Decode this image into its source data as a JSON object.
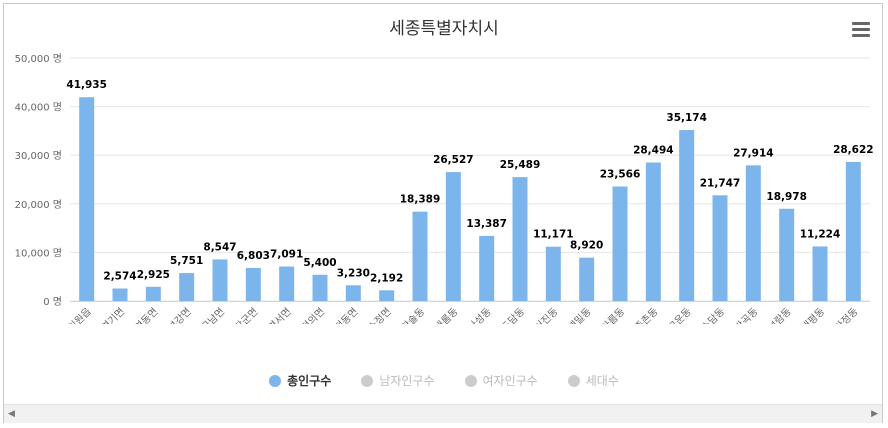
{
  "chart_data": {
    "type": "bar",
    "title": "세종특별자치시",
    "unit": "명",
    "ylim": [
      0,
      50000
    ],
    "yticks": [
      0,
      10000,
      20000,
      30000,
      40000,
      50000
    ],
    "ytick_labels": [
      "0 명",
      "10,000 명",
      "20,000 명",
      "30,000 명",
      "40,000 명",
      "50,000 명"
    ],
    "categories": [
      "조치원읍",
      "연기면",
      "연동면",
      "부강면",
      "금남면",
      "장군면",
      "연서면",
      "전의면",
      "전동면",
      "소정면",
      "한솔동",
      "새롬동",
      "나성동",
      "도담동",
      "어진동",
      "해밀동",
      "아름동",
      "종촌동",
      "고운동",
      "소담동",
      "반곡동",
      "보람동",
      "대평동",
      "다정동"
    ],
    "series": [
      {
        "name": "총인구수",
        "visible": true,
        "values": [
          41935,
          2574,
          2925,
          5751,
          8547,
          6803,
          7091,
          5400,
          3230,
          2192,
          18389,
          26527,
          13387,
          25489,
          11171,
          8920,
          23566,
          28494,
          35174,
          21747,
          27914,
          18978,
          11224,
          28622
        ]
      }
    ],
    "value_labels": [
      "41,935",
      "2,574",
      "2,925",
      "5,751",
      "8,547",
      "6,803",
      "7,091",
      "5,400",
      "3,230",
      "2,192",
      "18,389",
      "26,527",
      "13,387",
      "25,489",
      "11,171",
      "8,920",
      "23,566",
      "28,494",
      "35,174",
      "21,747",
      "27,914",
      "18,978",
      "11,224",
      "28,622"
    ]
  },
  "legend": [
    {
      "label": "총인구수",
      "active": true,
      "color": "#7cb5ec"
    },
    {
      "label": "남자인구수",
      "active": false,
      "color": "#cccccc"
    },
    {
      "label": "여자인구수",
      "active": false,
      "color": "#cccccc"
    },
    {
      "label": "세대수",
      "active": false,
      "color": "#cccccc"
    }
  ],
  "colors": {
    "bar": "#7cb5ec",
    "grid": "#e6e6e6",
    "axis_text": "#666666",
    "label_text": "#000000"
  },
  "icons": {
    "menu": "hamburger-menu-icon",
    "scroll_left": "chevron-left-icon",
    "scroll_right": "chevron-right-icon"
  }
}
